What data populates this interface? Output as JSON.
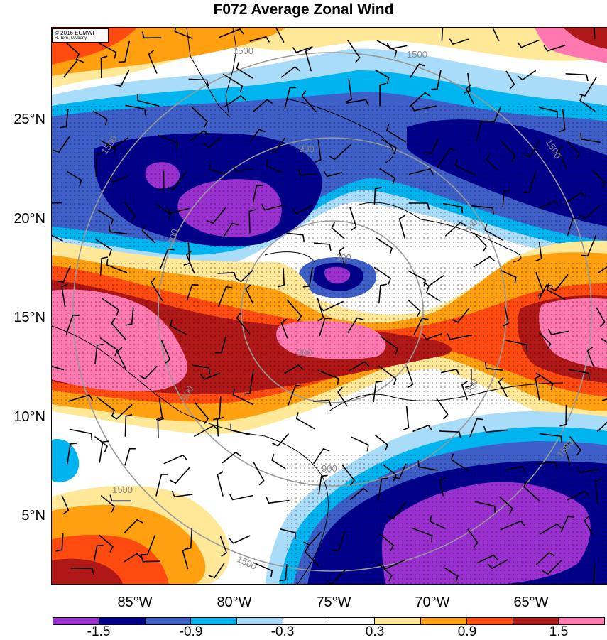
{
  "title": "F072 Average Zonal Wind",
  "credit": {
    "line1": "© 2016 ECMWF",
    "line2": "R. Torn, UAlbany"
  },
  "lat_labels": [
    "25°N",
    "20°N",
    "15°N",
    "10°N",
    "5°N"
  ],
  "lon_labels": [
    "85°W",
    "80°W",
    "75°W",
    "70°W",
    "65°W"
  ],
  "colorbar": {
    "colors": [
      "#9b30d0",
      "#00008b",
      "#3f5fc8",
      "#00b4f0",
      "#a8dcf8",
      "#ffffff",
      "#ffffff",
      "#ffe898",
      "#ffa010",
      "#ff4a10",
      "#b01818",
      "#ff78b0"
    ],
    "labels": [
      "-1.5",
      "-0.9",
      "-0.3",
      "0.3",
      "0.9",
      "1.5"
    ]
  },
  "contour_labels": [
    "1500",
    "1500",
    "1500",
    "1500",
    "1500",
    "1500",
    "1500",
    "900",
    "900",
    "900",
    "900",
    "900",
    "900",
    "300",
    "300"
  ]
}
